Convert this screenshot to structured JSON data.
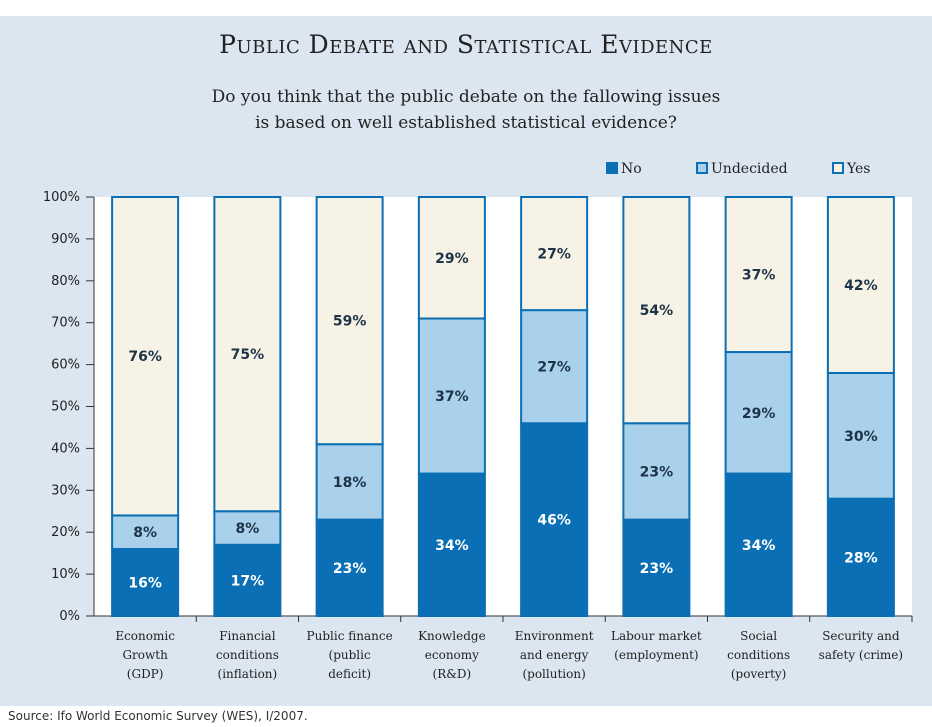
{
  "title": "Public Debate and Statistical Evidence",
  "subtitle_lines": [
    "Do you think that the public debate on the fallowing issues",
    "is based on well established statistical evidence?"
  ],
  "source": "Source: Ifo World Economic Survey (WES), I/2007.",
  "colors": {
    "panel_bg": "#dbe6f1",
    "no": "#0a6fb4",
    "undecided": "#a9d1eb",
    "yes": "#f6f3e6",
    "bar_border": "#0a6fb4"
  },
  "chart_data": {
    "type": "bar",
    "stacked": true,
    "title": "Public Debate and Statistical Evidence",
    "ylim": [
      0,
      100
    ],
    "y_ticks": [
      "0%",
      "10%",
      "20%",
      "30%",
      "40%",
      "50%",
      "60%",
      "70%",
      "80%",
      "90%",
      "100%"
    ],
    "legend_position": "top-right",
    "categories": [
      [
        "Economic",
        "Growth",
        "(GDP)"
      ],
      [
        "Financial",
        "conditions",
        "(inflation)"
      ],
      [
        "Public finance",
        "(public",
        "deficit)"
      ],
      [
        "Knowledge",
        "economy",
        "(R&D)"
      ],
      [
        "Environment",
        "and energy",
        "(pollution)"
      ],
      [
        "Labour market",
        "(employment)"
      ],
      [
        "Social",
        "conditions",
        "(poverty)"
      ],
      [
        "Security and",
        "safety (crime)"
      ]
    ],
    "series": [
      {
        "name": "No",
        "values": [
          16,
          17,
          23,
          34,
          46,
          23,
          34,
          28
        ],
        "labels": [
          "16%",
          "17%",
          "23%",
          "34%",
          "46%",
          "23%",
          "34%",
          "28%"
        ]
      },
      {
        "name": "Undecided",
        "values": [
          8,
          8,
          18,
          37,
          27,
          23,
          29,
          30
        ],
        "labels": [
          "8%",
          "8%",
          "18%",
          "37%",
          "27%",
          "23%",
          "29%",
          "30%"
        ]
      },
      {
        "name": "Yes",
        "values": [
          76,
          75,
          59,
          29,
          27,
          54,
          37,
          42
        ],
        "labels": [
          "76%",
          "75%",
          "59%",
          "29%",
          "27%",
          "54%",
          "37%",
          "42%"
        ]
      }
    ]
  }
}
